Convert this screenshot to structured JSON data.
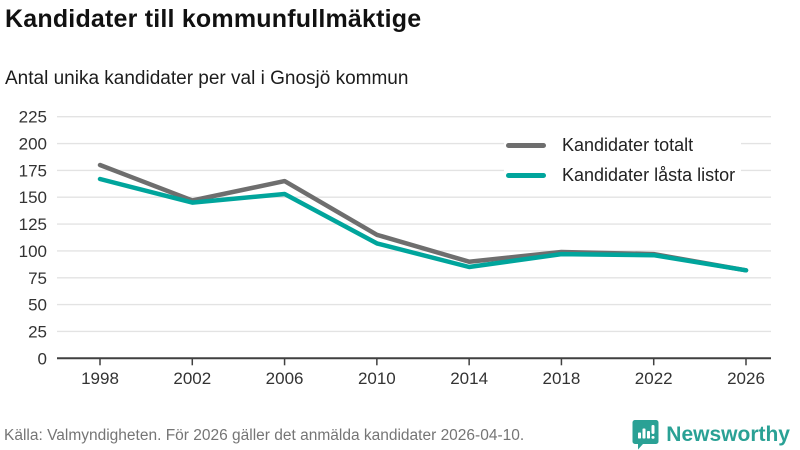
{
  "header": {
    "title": "Kandidater till kommunfullmäktige",
    "subtitle": "Antal unika kandidater per val i Gnosjö kommun"
  },
  "chart_data": {
    "type": "line",
    "title": "Kandidater till kommunfullmäktige",
    "subtitle": "Antal unika kandidater per val i Gnosjö kommun",
    "x": [
      1998,
      2002,
      2006,
      2010,
      2014,
      2018,
      2022,
      2026
    ],
    "series": [
      {
        "name": "Kandidater totalt",
        "color": "#6e6e6e",
        "values": [
          180,
          147,
          165,
          115,
          90,
          99,
          97,
          82
        ]
      },
      {
        "name": "Kandidater låsta listor",
        "color": "#00a59c",
        "values": [
          167,
          145,
          153,
          107,
          85,
          97,
          96,
          82
        ]
      }
    ],
    "ylim": [
      0,
      225
    ],
    "yticks": [
      0,
      25,
      50,
      75,
      100,
      125,
      150,
      175,
      200,
      225
    ],
    "grid": true,
    "legend_position": "top-right",
    "colors": {
      "grid": "#e3e3e3",
      "axis": "#404040",
      "tick_label": "#333333"
    }
  },
  "footer": {
    "source": "Källa: Valmyndigheten. För 2026 gäller det anmälda kandidater 2026-04-10.",
    "brand": "Newsworthy",
    "brand_color": "#2aa195"
  }
}
